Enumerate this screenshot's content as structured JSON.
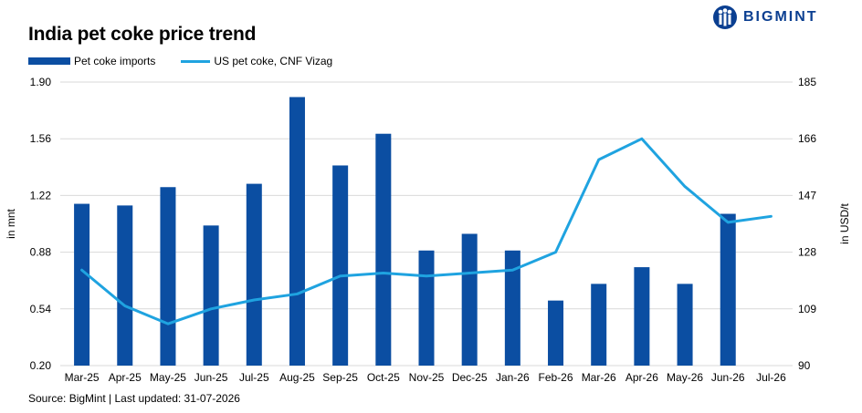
{
  "title": "India pet coke price trend",
  "brand": {
    "name": "BIGMINT"
  },
  "source": "Source: BigMint | Last updated: 31-07-2026",
  "legend": {
    "bars": "Pet coke imports",
    "line": "US pet coke, CNF Vizag"
  },
  "colors": {
    "bars": "#0b4ea2",
    "line": "#1fa3e0",
    "brand": "#0b3f91"
  },
  "chart_data": {
    "type": "bar+line",
    "categories": [
      "Mar-25",
      "Apr-25",
      "May-25",
      "Jun-25",
      "Jul-25",
      "Aug-25",
      "Sep-25",
      "Oct-25",
      "Nov-25",
      "Dec-25",
      "Jan-26",
      "Feb-26",
      "Mar-26",
      "Apr-26",
      "May-26",
      "Jun-26",
      "Jul-26"
    ],
    "series": [
      {
        "name": "Pet coke imports",
        "type": "bar",
        "axis": "left",
        "values": [
          1.17,
          1.16,
          1.27,
          1.04,
          1.29,
          1.81,
          1.4,
          1.59,
          0.89,
          0.99,
          0.89,
          0.59,
          0.69,
          0.79,
          0.69,
          1.11,
          null
        ]
      },
      {
        "name": "US pet coke, CNF Vizag",
        "type": "line",
        "axis": "right",
        "values": [
          122,
          110,
          104,
          109,
          112,
          114,
          120,
          121,
          120,
          121,
          122,
          128,
          159,
          166,
          150,
          138,
          140
        ]
      }
    ],
    "y_left": {
      "label": "in mnt",
      "ticks": [
        "1.90",
        "1.56",
        "1.22",
        "0.88",
        "0.54",
        "0.20"
      ],
      "min": 0.2,
      "max": 1.9
    },
    "y_right": {
      "label": "in USD/t",
      "ticks": [
        "185",
        "166",
        "147",
        "128",
        "109",
        "90"
      ],
      "min": 90,
      "max": 185
    },
    "grid": "horizontal",
    "legend_position": "top-left"
  }
}
